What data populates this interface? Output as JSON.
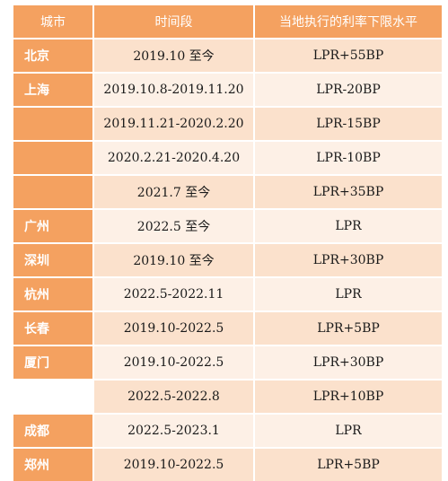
{
  "header": {
    "city": "城市",
    "period": "时间段",
    "level": "当地执行的利率下限水平"
  },
  "rows": [
    {
      "city": "北京",
      "period": "2019.10 至今",
      "level": "LPR+55BP"
    },
    {
      "city": "上海",
      "period": "2019.10.8-2019.11.20",
      "level": "LPR-20BP"
    },
    {
      "city": "",
      "period": "2019.11.21-2020.2.20",
      "level": "LPR-15BP"
    },
    {
      "city": "",
      "period": "2020.2.21-2020.4.20",
      "level": "LPR-10BP"
    },
    {
      "city": "",
      "period": "2021.7 至今",
      "level": "LPR+35BP"
    },
    {
      "city": "广州",
      "period": "2022.5 至今",
      "level": "LPR"
    },
    {
      "city": "深圳",
      "period": "2019.10 至今",
      "level": "LPR+30BP"
    },
    {
      "city": "杭州",
      "period": "2022.5-2022.11",
      "level": "LPR"
    },
    {
      "city": "长春",
      "period": "2019.10-2022.5",
      "level": "LPR+5BP"
    },
    {
      "city": "厦门",
      "period": "2019.10-2022.5",
      "level": "LPR+30BP"
    },
    {
      "city": "",
      "period": "2022.5-2022.8",
      "level": "LPR+10BP"
    },
    {
      "city": "成都",
      "period": "2022.5-2023.1",
      "level": "LPR"
    },
    {
      "city": "郑州",
      "period": "2019.10-2022.5",
      "level": "LPR+5BP"
    }
  ]
}
